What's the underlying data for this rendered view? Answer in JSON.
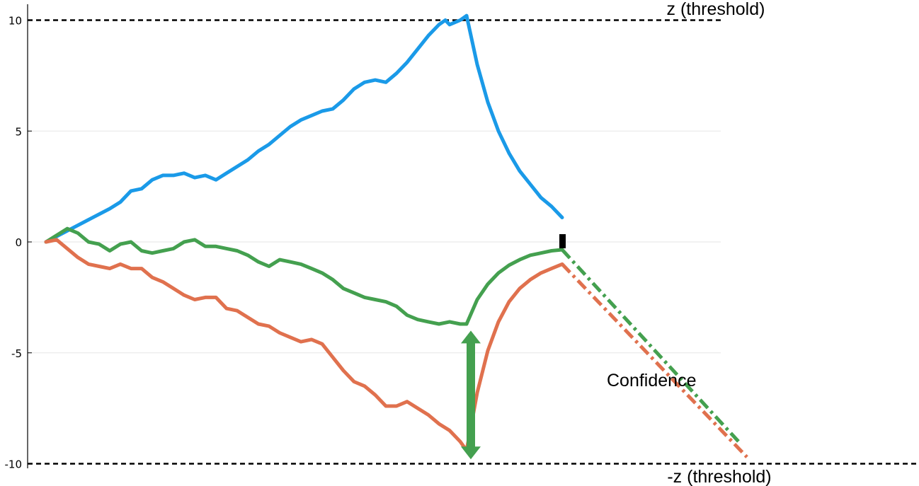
{
  "chart_data": {
    "type": "line",
    "title": "",
    "xlabel": "",
    "ylabel": "",
    "ylim": [
      -10,
      10
    ],
    "yticks": [
      10,
      5,
      0,
      -5,
      -10
    ],
    "ytick_labels": [
      "10",
      "5",
      "0",
      "-5",
      "-10"
    ],
    "grid": "horizontal",
    "colors": {
      "blue": "#1a9ae8",
      "green": "#44a04f",
      "orange": "#e0714e",
      "threshold": "#000000",
      "grid": "#e6e6e6"
    },
    "thresholds": [
      {
        "value": 10,
        "label": "z (threshold)"
      },
      {
        "value": -10,
        "label": "-z (threshold)"
      }
    ],
    "series": [
      {
        "color": "blue",
        "style": "solid",
        "points": [
          [
            0,
            0
          ],
          [
            10,
            0.5
          ],
          [
            20,
            1.0
          ],
          [
            30,
            1.5
          ],
          [
            35,
            1.8
          ],
          [
            40,
            2.3
          ],
          [
            45,
            2.4
          ],
          [
            50,
            2.8
          ],
          [
            55,
            3.0
          ],
          [
            60,
            3.0
          ],
          [
            65,
            3.1
          ],
          [
            70,
            2.9
          ],
          [
            75,
            3.0
          ],
          [
            80,
            2.8
          ],
          [
            85,
            3.1
          ],
          [
            90,
            3.4
          ],
          [
            95,
            3.7
          ],
          [
            100,
            4.1
          ],
          [
            105,
            4.4
          ],
          [
            110,
            4.8
          ],
          [
            115,
            5.2
          ],
          [
            120,
            5.5
          ],
          [
            125,
            5.7
          ],
          [
            130,
            5.9
          ],
          [
            135,
            6.0
          ],
          [
            140,
            6.4
          ],
          [
            145,
            6.9
          ],
          [
            150,
            7.2
          ],
          [
            155,
            7.3
          ],
          [
            160,
            7.2
          ],
          [
            165,
            7.6
          ],
          [
            170,
            8.1
          ],
          [
            175,
            8.7
          ],
          [
            180,
            9.3
          ],
          [
            185,
            9.8
          ],
          [
            188,
            10.0
          ],
          [
            190,
            9.8
          ],
          [
            195,
            10.0
          ],
          [
            198,
            10.2
          ]
        ]
      },
      {
        "color": "blue",
        "style": "solid",
        "points": [
          [
            198,
            10.2
          ],
          [
            203,
            8.0
          ],
          [
            208,
            6.3
          ],
          [
            213,
            5.0
          ],
          [
            218,
            4.0
          ],
          [
            223,
            3.2
          ],
          [
            228,
            2.6
          ],
          [
            233,
            2.0
          ],
          [
            238,
            1.6
          ],
          [
            243,
            1.1
          ]
        ]
      },
      {
        "color": "green",
        "style": "solid",
        "points": [
          [
            0,
            0
          ],
          [
            5,
            0.3
          ],
          [
            10,
            0.6
          ],
          [
            15,
            0.4
          ],
          [
            20,
            0.0
          ],
          [
            25,
            -0.1
          ],
          [
            30,
            -0.4
          ],
          [
            35,
            -0.1
          ],
          [
            40,
            0.0
          ],
          [
            45,
            -0.4
          ],
          [
            50,
            -0.5
          ],
          [
            55,
            -0.4
          ],
          [
            60,
            -0.3
          ],
          [
            65,
            0.0
          ],
          [
            70,
            0.1
          ],
          [
            75,
            -0.2
          ],
          [
            80,
            -0.2
          ],
          [
            85,
            -0.3
          ],
          [
            90,
            -0.4
          ],
          [
            95,
            -0.6
          ],
          [
            100,
            -0.9
          ],
          [
            105,
            -1.1
          ],
          [
            110,
            -0.8
          ],
          [
            115,
            -0.9
          ],
          [
            120,
            -1.0
          ],
          [
            125,
            -1.2
          ],
          [
            130,
            -1.4
          ],
          [
            135,
            -1.7
          ],
          [
            140,
            -2.1
          ],
          [
            145,
            -2.3
          ],
          [
            150,
            -2.5
          ],
          [
            155,
            -2.6
          ],
          [
            160,
            -2.7
          ],
          [
            165,
            -2.9
          ],
          [
            170,
            -3.3
          ],
          [
            175,
            -3.5
          ],
          [
            180,
            -3.6
          ],
          [
            185,
            -3.7
          ],
          [
            190,
            -3.6
          ],
          [
            195,
            -3.7
          ],
          [
            198,
            -3.7
          ]
        ]
      },
      {
        "color": "green",
        "style": "solid",
        "points": [
          [
            198,
            -3.7
          ],
          [
            203,
            -2.6
          ],
          [
            208,
            -1.9
          ],
          [
            213,
            -1.4
          ],
          [
            218,
            -1.05
          ],
          [
            223,
            -0.8
          ],
          [
            228,
            -0.6
          ],
          [
            233,
            -0.5
          ],
          [
            238,
            -0.4
          ],
          [
            243,
            -0.35
          ]
        ]
      },
      {
        "color": "green",
        "style": "dashdot",
        "points": [
          [
            243,
            -0.35
          ],
          [
            327,
            -9.1
          ]
        ]
      },
      {
        "color": "orange",
        "style": "solid",
        "points": [
          [
            0,
            0
          ],
          [
            5,
            0.1
          ],
          [
            10,
            -0.3
          ],
          [
            15,
            -0.7
          ],
          [
            20,
            -1.0
          ],
          [
            25,
            -1.1
          ],
          [
            30,
            -1.2
          ],
          [
            35,
            -1.0
          ],
          [
            40,
            -1.2
          ],
          [
            45,
            -1.2
          ],
          [
            50,
            -1.6
          ],
          [
            55,
            -1.8
          ],
          [
            60,
            -2.1
          ],
          [
            65,
            -2.4
          ],
          [
            70,
            -2.6
          ],
          [
            75,
            -2.5
          ],
          [
            80,
            -2.5
          ],
          [
            85,
            -3.0
          ],
          [
            90,
            -3.1
          ],
          [
            95,
            -3.4
          ],
          [
            100,
            -3.7
          ],
          [
            105,
            -3.8
          ],
          [
            110,
            -4.1
          ],
          [
            115,
            -4.3
          ],
          [
            120,
            -4.5
          ],
          [
            125,
            -4.4
          ],
          [
            130,
            -4.6
          ],
          [
            135,
            -5.2
          ],
          [
            140,
            -5.8
          ],
          [
            145,
            -6.3
          ],
          [
            150,
            -6.5
          ],
          [
            155,
            -6.9
          ],
          [
            160,
            -7.4
          ],
          [
            165,
            -7.4
          ],
          [
            170,
            -7.2
          ],
          [
            175,
            -7.5
          ],
          [
            180,
            -7.8
          ],
          [
            185,
            -8.2
          ],
          [
            190,
            -8.5
          ],
          [
            195,
            -9.0
          ],
          [
            198,
            -9.4
          ]
        ]
      },
      {
        "color": "orange",
        "style": "solid",
        "points": [
          [
            198,
            -9.4
          ],
          [
            203,
            -6.8
          ],
          [
            208,
            -4.9
          ],
          [
            213,
            -3.6
          ],
          [
            218,
            -2.7
          ],
          [
            223,
            -2.1
          ],
          [
            228,
            -1.7
          ],
          [
            233,
            -1.4
          ],
          [
            238,
            -1.2
          ],
          [
            243,
            -1.0
          ]
        ]
      },
      {
        "color": "orange",
        "style": "dashdot",
        "points": [
          [
            243,
            -1.0
          ],
          [
            330,
            -9.7
          ]
        ]
      }
    ],
    "marker": {
      "x": 243,
      "y": 0
    },
    "annotation": {
      "label": "Confidence",
      "arrow_x": 200,
      "from_y": -4.0,
      "to_y": -9.8,
      "color": "green"
    }
  }
}
